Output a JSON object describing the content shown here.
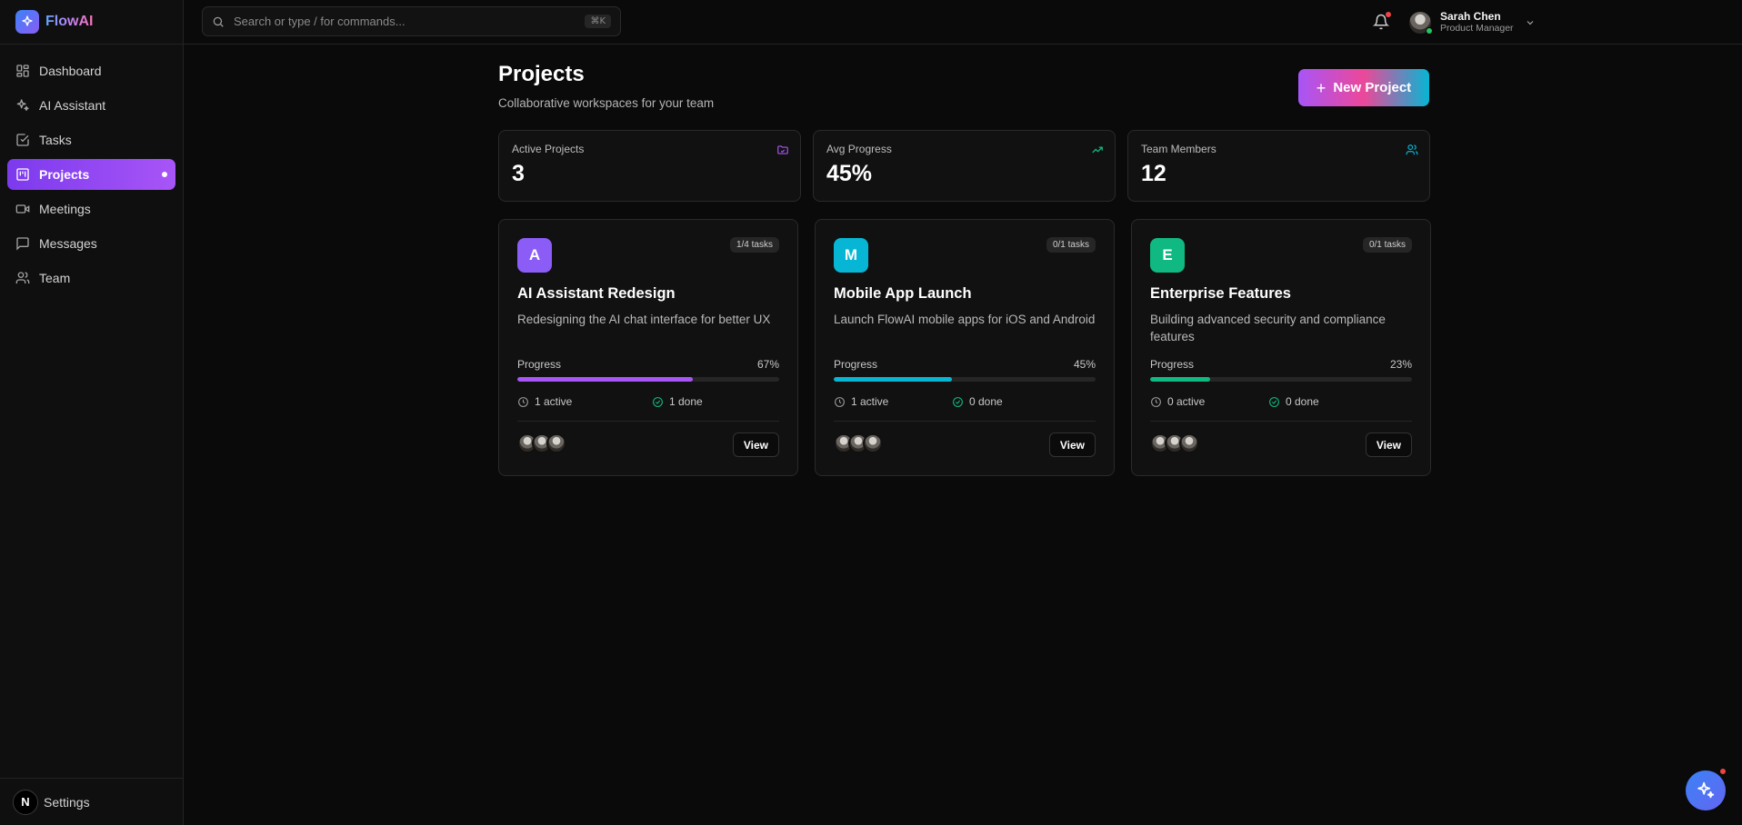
{
  "brand": {
    "name": "FlowAI"
  },
  "sidebar": {
    "items": [
      {
        "label": "Dashboard",
        "icon": "grid-icon"
      },
      {
        "label": "AI Assistant",
        "icon": "sparkles-icon"
      },
      {
        "label": "Tasks",
        "icon": "check-square-icon"
      },
      {
        "label": "Projects",
        "icon": "kanban-icon",
        "active": true
      },
      {
        "label": "Meetings",
        "icon": "video-icon"
      },
      {
        "label": "Messages",
        "icon": "message-icon"
      },
      {
        "label": "Team",
        "icon": "users-icon"
      }
    ],
    "settings_label": "Settings",
    "settings_badge": "N"
  },
  "search": {
    "placeholder": "Search or type / for commands...",
    "shortcut": "⌘K"
  },
  "user": {
    "name": "Sarah Chen",
    "role": "Product Manager"
  },
  "page": {
    "title": "Projects",
    "subtitle": "Collaborative workspaces for your team",
    "new_button": "New Project"
  },
  "stats": [
    {
      "label": "Active Projects",
      "value": "3",
      "icon": "folder-icon",
      "color": "#a855f7"
    },
    {
      "label": "Avg Progress",
      "value": "45%",
      "icon": "trending-up-icon",
      "color": "#10b981"
    },
    {
      "label": "Team Members",
      "value": "12",
      "icon": "users-icon",
      "color": "#06b6d4"
    }
  ],
  "projects": [
    {
      "letter": "A",
      "color": "#8b5cf6",
      "tasks": "1/4 tasks",
      "title": "AI Assistant Redesign",
      "description": "Redesigning the AI chat interface for better UX",
      "progress_label": "Progress",
      "progress_text": "67%",
      "progress": 0.67,
      "bar_color": "#a855f7",
      "active": "1 active",
      "done": "1 done",
      "view_label": "View"
    },
    {
      "letter": "M",
      "color": "#06b6d4",
      "tasks": "0/1 tasks",
      "title": "Mobile App Launch",
      "description": "Launch FlowAI mobile apps for iOS and Android",
      "progress_label": "Progress",
      "progress_text": "45%",
      "progress": 0.45,
      "bar_color": "#06b6d4",
      "active": "1 active",
      "done": "0 done",
      "view_label": "View"
    },
    {
      "letter": "E",
      "color": "#10b981",
      "tasks": "0/1 tasks",
      "title": "Enterprise Features",
      "description": "Building advanced security and compliance features",
      "progress_label": "Progress",
      "progress_text": "23%",
      "progress": 0.23,
      "bar_color": "#10b981",
      "active": "0 active",
      "done": "0 done",
      "view_label": "View"
    }
  ]
}
